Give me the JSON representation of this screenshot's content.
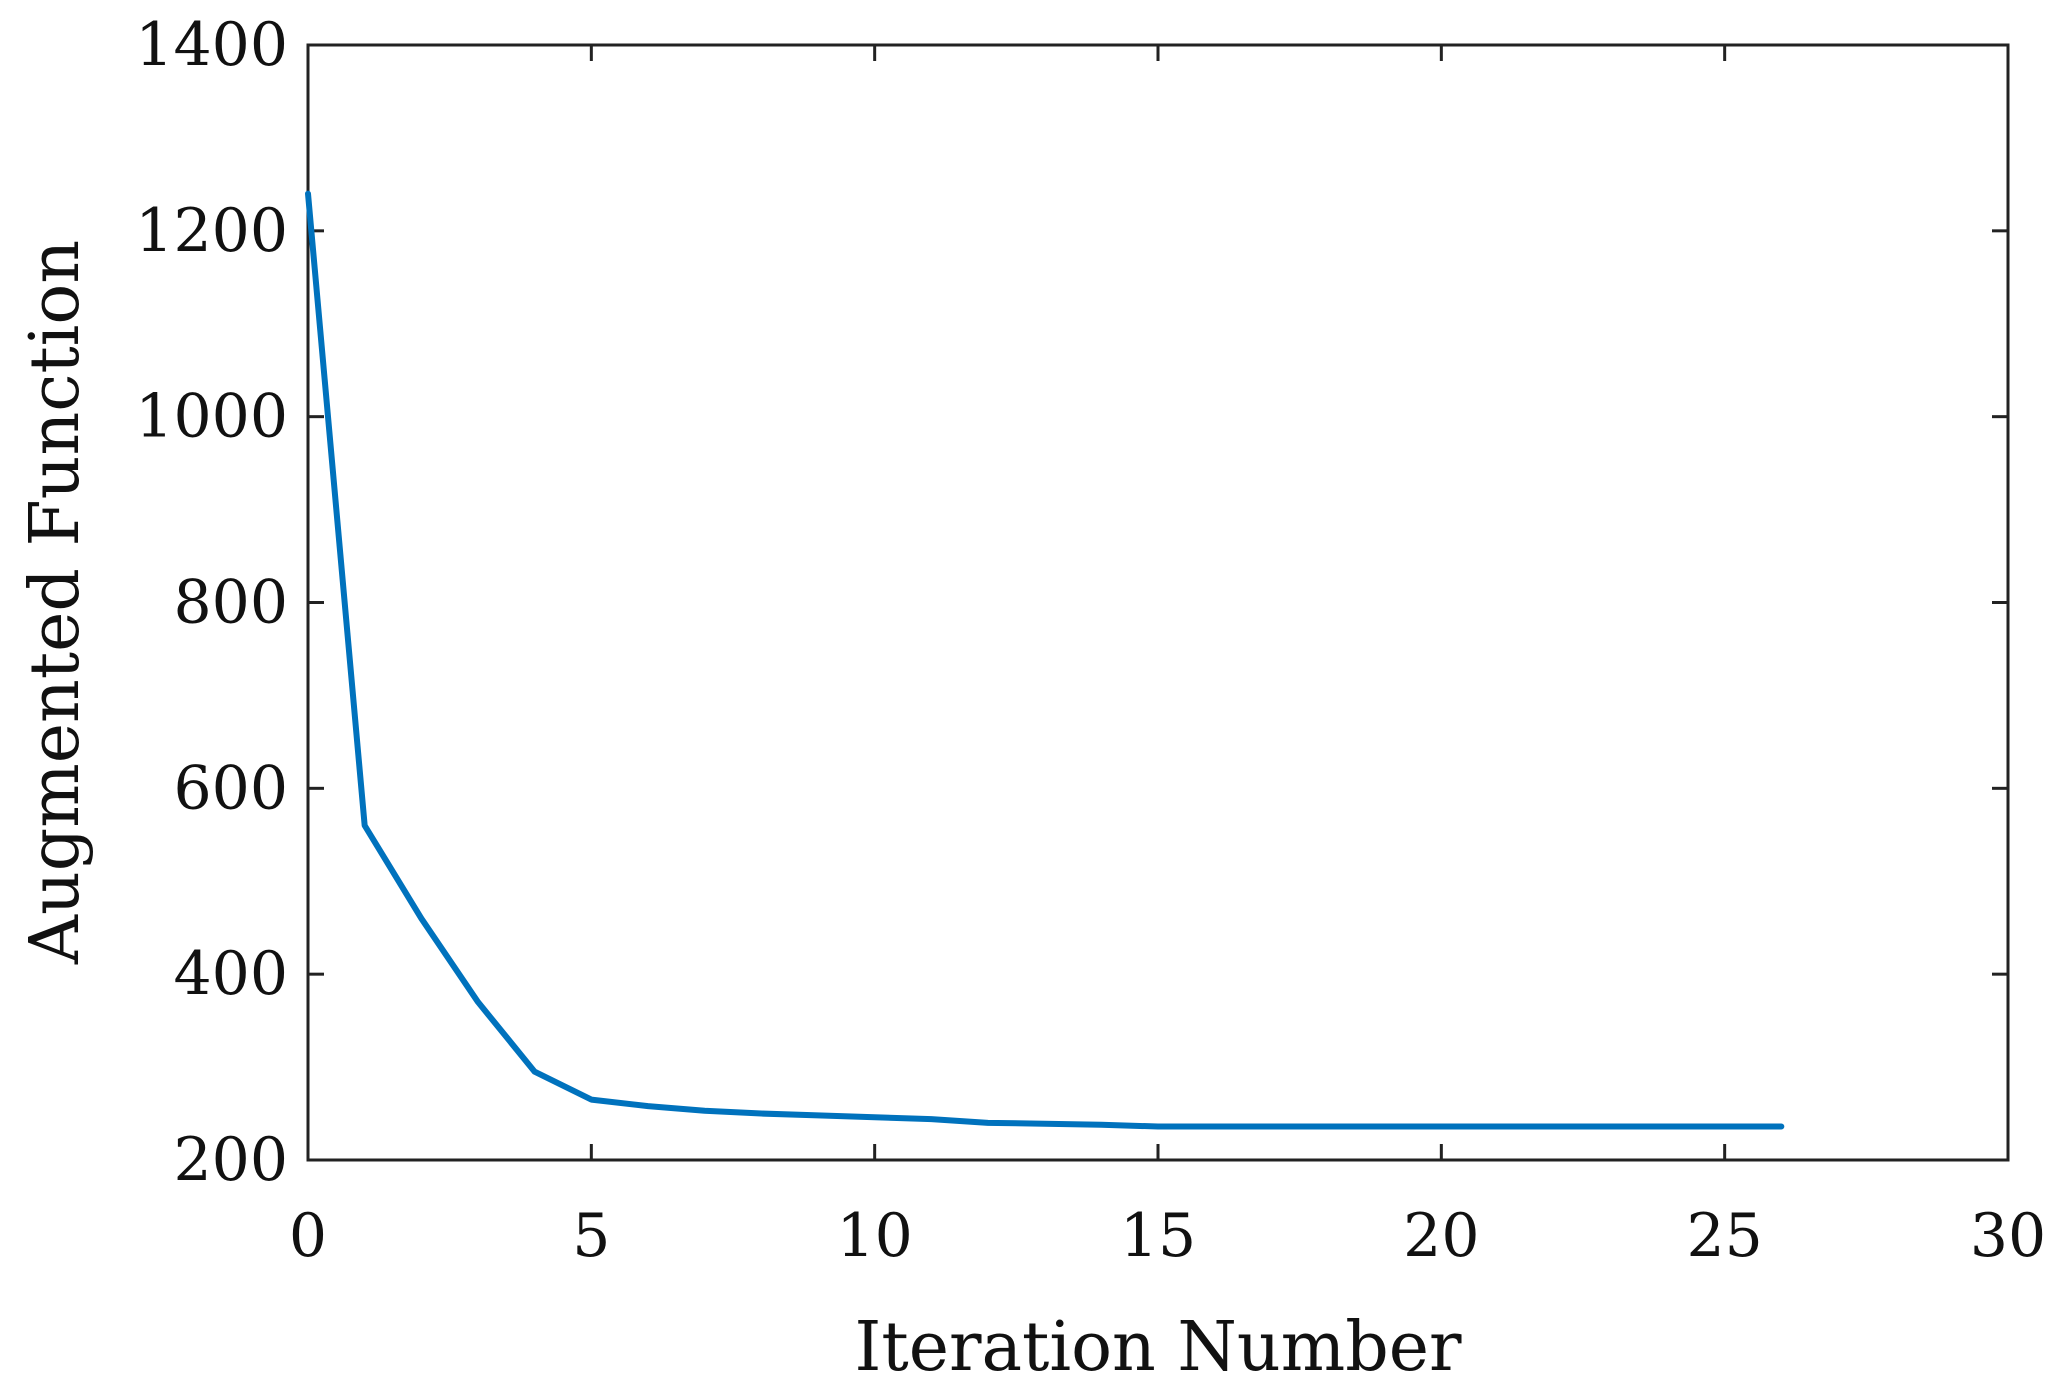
{
  "chart_data": {
    "type": "line",
    "title": "",
    "xlabel": "Iteration Number",
    "ylabel": "Augmented Function",
    "xlim": [
      0,
      30
    ],
    "ylim": [
      200,
      1400
    ],
    "xticks": [
      0,
      5,
      10,
      15,
      20,
      25,
      30
    ],
    "yticks": [
      200,
      400,
      600,
      800,
      1000,
      1200,
      1400
    ],
    "xtick_labels": [
      "0",
      "5",
      "10",
      "15",
      "20",
      "25",
      "30"
    ],
    "ytick_labels": [
      "200",
      "400",
      "600",
      "800",
      "1000",
      "1200",
      "1400"
    ],
    "grid": false,
    "series": [
      {
        "color": "#0072BD",
        "x": [
          0,
          1,
          2,
          3,
          4,
          5,
          6,
          7,
          8,
          9,
          10,
          11,
          12,
          13,
          14,
          15,
          16,
          17,
          18,
          19,
          20,
          21,
          22,
          23,
          24,
          25,
          26
        ],
        "y": [
          1240,
          560,
          460,
          370,
          295,
          265,
          258,
          253,
          250,
          248,
          246,
          244,
          240,
          239,
          238,
          236,
          236,
          236,
          236,
          236,
          236,
          236,
          236,
          236,
          236,
          236,
          236
        ]
      }
    ]
  }
}
